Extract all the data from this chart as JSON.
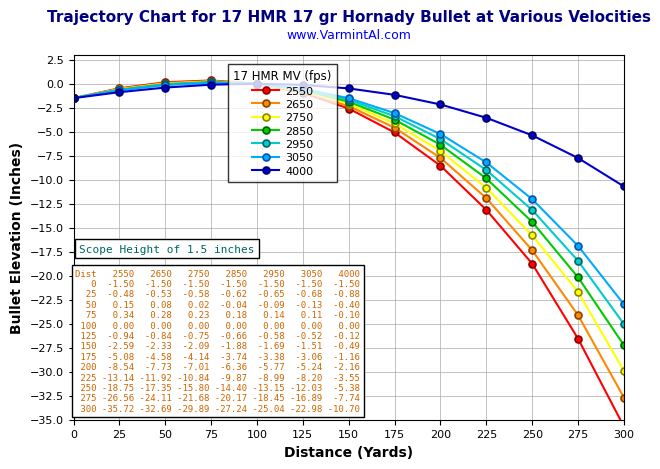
{
  "title": "Trajectory Chart for 17 HMR 17 gr Hornady Bullet at Various Velocities",
  "subtitle": "www.VarmintAl.com",
  "xlabel": "Distance (Yards)",
  "ylabel": "Bullet Elevation (Inches)",
  "xlim": [
    0,
    300
  ],
  "ylim": [
    -35,
    3
  ],
  "xticks": [
    0,
    25,
    50,
    75,
    100,
    125,
    150,
    175,
    200,
    225,
    250,
    275,
    300
  ],
  "yticks": [
    2.5,
    0,
    -2.5,
    -5,
    -7.5,
    -10,
    -12.5,
    -15,
    -17.5,
    -20,
    -22.5,
    -25,
    -27.5,
    -30,
    -32.5,
    -35
  ],
  "distances": [
    0,
    25,
    50,
    75,
    100,
    125,
    150,
    175,
    200,
    225,
    250,
    275,
    300
  ],
  "series": [
    {
      "label": "2550",
      "color": "#ff0000",
      "marker_edge": "#880000",
      "values": [
        -1.5,
        -0.48,
        0.15,
        0.34,
        0.0,
        -0.94,
        -2.59,
        -5.08,
        -8.54,
        -13.14,
        -18.75,
        -26.56,
        -35.72
      ]
    },
    {
      "label": "2650",
      "color": "#ff8800",
      "marker_edge": "#884400",
      "values": [
        -1.5,
        -0.53,
        0.08,
        0.28,
        0.0,
        -0.84,
        -2.33,
        -4.58,
        -7.73,
        -11.92,
        -17.35,
        -24.11,
        -32.69
      ]
    },
    {
      "label": "2750",
      "color": "#ffff00",
      "marker_edge": "#888800",
      "values": [
        -1.5,
        -0.58,
        0.02,
        0.23,
        0.0,
        -0.75,
        -2.09,
        -4.14,
        -7.01,
        -10.84,
        -15.8,
        -21.68,
        -29.89
      ]
    },
    {
      "label": "2850",
      "color": "#00cc00",
      "marker_edge": "#006600",
      "values": [
        -1.5,
        -0.62,
        -0.04,
        0.18,
        0.0,
        -0.66,
        -1.88,
        -3.74,
        -6.36,
        -9.87,
        -14.4,
        -20.17,
        -27.24
      ]
    },
    {
      "label": "2950",
      "color": "#00cccc",
      "marker_edge": "#006666",
      "values": [
        -1.5,
        -0.65,
        -0.09,
        0.14,
        0.0,
        -0.58,
        -1.69,
        -3.38,
        -5.77,
        -8.99,
        -13.15,
        -18.45,
        -25.04
      ]
    },
    {
      "label": "3050",
      "color": "#00aaff",
      "marker_edge": "#0055aa",
      "values": [
        -1.5,
        -0.68,
        -0.13,
        0.11,
        0.0,
        -0.52,
        -1.51,
        -3.06,
        -5.24,
        -8.2,
        -12.03,
        -16.89,
        -22.98
      ]
    },
    {
      "label": "4000",
      "color": "#0000cc",
      "marker_edge": "#000066",
      "values": [
        -1.5,
        -0.88,
        -0.4,
        -0.1,
        0.0,
        -0.12,
        -0.49,
        -1.16,
        -2.16,
        -3.55,
        -5.38,
        -7.74,
        -10.7
      ]
    }
  ],
  "legend_title": "17 HMR MV (fps)",
  "scope_text": "Scope Height of 1.5 inches",
  "table_header": [
    "Dist",
    "2550",
    "2650",
    "2750",
    "2850",
    "2950",
    "3050",
    "4000"
  ],
  "table_rows": [
    [
      "0",
      "-1.50",
      "-1.50",
      "-1.50",
      "-1.50",
      "-1.50",
      "-1.50",
      "-1.50"
    ],
    [
      "25",
      "-0.48",
      "-0.53",
      "-0.58",
      "-0.62",
      "-0.65",
      "-0.68",
      "-0.88"
    ],
    [
      "50",
      "0.15",
      "0.08",
      "0.02",
      "-0.04",
      "-0.09",
      "-0.13",
      "-0.40"
    ],
    [
      "75",
      "0.34",
      "0.28",
      "0.23",
      "0.18",
      "0.14",
      "0.11",
      "-0.10"
    ],
    [
      "100",
      "0.00",
      "0.00",
      "0.00",
      "0.00",
      "0.00",
      "0.00",
      "0.00"
    ],
    [
      "125",
      "-0.94",
      "-0.84",
      "-0.75",
      "-0.66",
      "-0.58",
      "-0.52",
      "-0.12"
    ],
    [
      "150",
      "-2.59",
      "-2.33",
      "-2.09",
      "-1.88",
      "-1.69",
      "-1.51",
      "-0.49"
    ],
    [
      "175",
      "-5.08",
      "-4.58",
      "-4.14",
      "-3.74",
      "-3.38",
      "-3.06",
      "-1.16"
    ],
    [
      "200",
      "-8.54",
      "-7.73",
      "-7.01",
      "-6.36",
      "-5.77",
      "-5.24",
      "-2.16"
    ],
    [
      "225",
      "-13.14",
      "-11.92",
      "-10.84",
      "-9.87",
      "-8.99",
      "-8.20",
      "-3.55"
    ],
    [
      "250",
      "-18.75",
      "-17.35",
      "-15.80",
      "-14.40",
      "-13.15",
      "-12.03",
      "-5.38"
    ],
    [
      "275",
      "-26.56",
      "-24.11",
      "-21.68",
      "-20.17",
      "-18.45",
      "-16.89",
      "-7.74"
    ],
    [
      "300",
      "-35.72",
      "-32.69",
      "-29.89",
      "-27.24",
      "-25.04",
      "-22.98",
      "-10.70"
    ]
  ],
  "bg_color": "#ffffff",
  "grid_color": "#aaaaaa",
  "title_color": "#000080",
  "subtitle_color": "#0000ff",
  "table_color": "#cc6600"
}
